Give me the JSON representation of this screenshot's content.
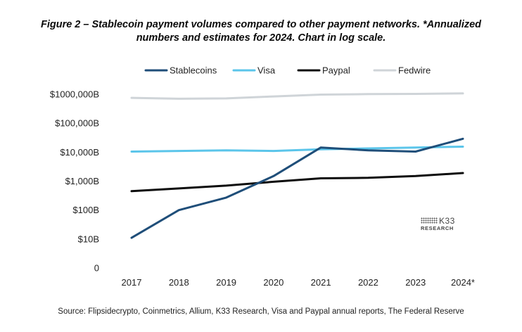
{
  "chart_data": {
    "type": "line",
    "title_lines": [
      "Figure 2 – Stablecoin payment volumes compared to other payment networks. *Annualized",
      "numbers and estimates for 2024. Chart in log scale."
    ],
    "scale": "log",
    "categories": [
      "2017",
      "2018",
      "2019",
      "2020",
      "2021",
      "2022",
      "2023",
      "2024*"
    ],
    "y_ticks": [
      {
        "label": "$1000,000B",
        "value": 1000000
      },
      {
        "label": "$100,000B",
        "value": 100000
      },
      {
        "label": "$10,000B",
        "value": 10000
      },
      {
        "label": "$1,000B",
        "value": 1000
      },
      {
        "label": "$100B",
        "value": 100
      },
      {
        "label": "$10B",
        "value": 10
      },
      {
        "label": "0",
        "value": 1
      }
    ],
    "ylim": [
      1,
      1000000
    ],
    "grid": false,
    "legend_position": "top",
    "series": [
      {
        "name": "Stablecoins",
        "color": "#1f4e79",
        "values": [
          11,
          100,
          270,
          1500,
          14500,
          11500,
          10500,
          29000
        ]
      },
      {
        "name": "Visa",
        "color": "#5bc5ea",
        "values": [
          10500,
          11000,
          11500,
          11000,
          12500,
          13500,
          14500,
          15500
        ]
      },
      {
        "name": "Paypal",
        "color": "#0d0d0d",
        "values": [
          450,
          560,
          700,
          950,
          1250,
          1300,
          1500,
          1900
        ]
      },
      {
        "name": "Fedwire",
        "color": "#cfd4d8",
        "values": [
          750000,
          700000,
          720000,
          840000,
          970000,
          1010000,
          1030000,
          1070000
        ]
      }
    ],
    "source": "Source: Flipsidecrypto, Coinmetrics, Allium, K33 Research, Visa and Paypal annual reports, The Federal Reserve"
  },
  "logo": {
    "brand": "K33",
    "sub": "RESEARCH"
  }
}
